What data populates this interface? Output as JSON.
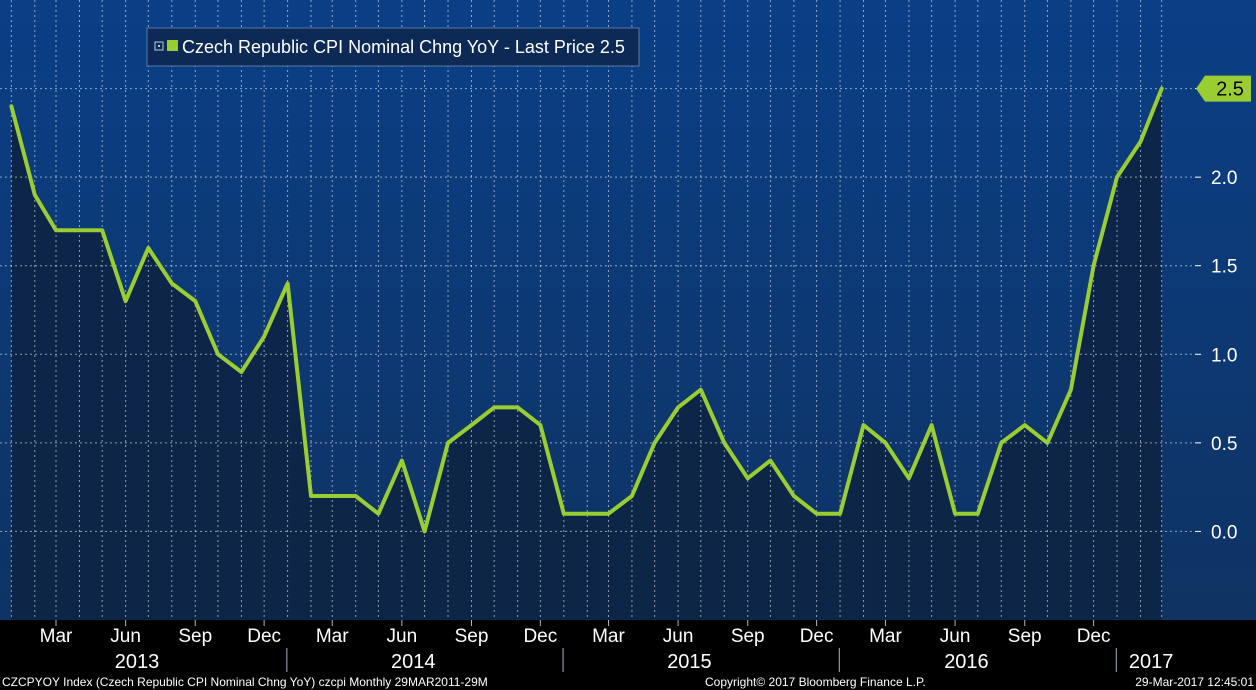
{
  "chart_data": {
    "type": "line",
    "legend": {
      "label": "Czech Republic CPI Nominal Chng YoY - Last Price 2.5",
      "placement": "top-left"
    },
    "last_price_label": "2.5",
    "series": [
      {
        "name": "Czech Republic CPI Nominal Chng YoY",
        "color": "#9acd32",
        "points": [
          [
            "2013-01",
            2.4
          ],
          [
            "2013-02",
            1.9
          ],
          [
            "2013-03",
            1.7
          ],
          [
            "2013-04",
            1.7
          ],
          [
            "2013-05",
            1.7
          ],
          [
            "2013-06",
            1.3
          ],
          [
            "2013-07",
            1.6
          ],
          [
            "2013-08",
            1.4
          ],
          [
            "2013-09",
            1.3
          ],
          [
            "2013-10",
            1.0
          ],
          [
            "2013-11",
            0.9
          ],
          [
            "2013-12",
            1.1
          ],
          [
            "2014-01",
            1.4
          ],
          [
            "2014-02",
            0.2
          ],
          [
            "2014-03",
            0.2
          ],
          [
            "2014-04",
            0.2
          ],
          [
            "2014-05",
            0.1
          ],
          [
            "2014-06",
            0.4
          ],
          [
            "2014-07",
            0.0
          ],
          [
            "2014-08",
            0.5
          ],
          [
            "2014-09",
            0.6
          ],
          [
            "2014-10",
            0.7
          ],
          [
            "2014-11",
            0.7
          ],
          [
            "2014-12",
            0.6
          ],
          [
            "2015-01",
            0.1
          ],
          [
            "2015-02",
            0.1
          ],
          [
            "2015-03",
            0.1
          ],
          [
            "2015-04",
            0.2
          ],
          [
            "2015-05",
            0.5
          ],
          [
            "2015-06",
            0.7
          ],
          [
            "2015-07",
            0.8
          ],
          [
            "2015-08",
            0.5
          ],
          [
            "2015-09",
            0.3
          ],
          [
            "2015-10",
            0.4
          ],
          [
            "2015-11",
            0.2
          ],
          [
            "2015-12",
            0.1
          ],
          [
            "2016-01",
            0.1
          ],
          [
            "2016-02",
            0.6
          ],
          [
            "2016-03",
            0.5
          ],
          [
            "2016-04",
            0.3
          ],
          [
            "2016-05",
            0.6
          ],
          [
            "2016-06",
            0.1
          ],
          [
            "2016-07",
            0.1
          ],
          [
            "2016-08",
            0.5
          ],
          [
            "2016-09",
            0.6
          ],
          [
            "2016-10",
            0.5
          ],
          [
            "2016-11",
            0.8
          ],
          [
            "2016-12",
            1.5
          ],
          [
            "2017-01",
            2.0
          ],
          [
            "2017-02",
            2.2
          ],
          [
            "2017-03",
            2.5
          ]
        ]
      }
    ],
    "ylim": [
      -0.5,
      3.0
    ],
    "yticks": [
      {
        "value": 0.0,
        "label": "0.0"
      },
      {
        "value": 0.5,
        "label": "0.5"
      },
      {
        "value": 1.0,
        "label": "1.0"
      },
      {
        "value": 1.5,
        "label": "1.5"
      },
      {
        "value": 2.0,
        "label": "2.0"
      },
      {
        "value": 2.5,
        "label": ""
      }
    ],
    "xlim": [
      "2012-12-17",
      "2017-04-14"
    ],
    "gridline_dates": [
      "2013-01",
      "2013-02",
      "2013-03",
      "2013-04",
      "2013-05",
      "2013-06",
      "2013-07",
      "2013-08",
      "2013-09",
      "2013-10",
      "2013-11",
      "2013-12",
      "2014-01",
      "2014-02",
      "2014-03",
      "2014-04",
      "2014-05",
      "2014-06",
      "2014-07",
      "2014-08",
      "2014-09",
      "2014-10",
      "2014-11",
      "2014-12",
      "2015-01",
      "2015-02",
      "2015-03",
      "2015-04",
      "2015-05",
      "2015-06",
      "2015-07",
      "2015-08",
      "2015-09",
      "2015-10",
      "2015-11",
      "2015-12",
      "2016-01",
      "2016-02",
      "2016-03",
      "2016-04",
      "2016-05",
      "2016-06",
      "2016-07",
      "2016-08",
      "2016-09",
      "2016-10",
      "2016-11",
      "2016-12",
      "2017-01",
      "2017-02",
      "2017-03"
    ],
    "month_labels": [
      {
        "date": "2013-03",
        "label": "Mar"
      },
      {
        "date": "2013-06",
        "label": "Jun"
      },
      {
        "date": "2013-09",
        "label": "Sep"
      },
      {
        "date": "2013-12",
        "label": "Dec"
      },
      {
        "date": "2014-03",
        "label": "Mar"
      },
      {
        "date": "2014-06",
        "label": "Jun"
      },
      {
        "date": "2014-09",
        "label": "Sep"
      },
      {
        "date": "2014-12",
        "label": "Dec"
      },
      {
        "date": "2015-03",
        "label": "Mar"
      },
      {
        "date": "2015-06",
        "label": "Jun"
      },
      {
        "date": "2015-09",
        "label": "Sep"
      },
      {
        "date": "2015-12",
        "label": "Dec"
      },
      {
        "date": "2016-03",
        "label": "Mar"
      },
      {
        "date": "2016-06",
        "label": "Jun"
      },
      {
        "date": "2016-09",
        "label": "Sep"
      },
      {
        "date": "2016-12",
        "label": "Dec"
      }
    ],
    "year_labels": [
      {
        "date": "2013-06-16",
        "label": "2013"
      },
      {
        "date": "2014-06-16",
        "label": "2014"
      },
      {
        "date": "2015-06-16",
        "label": "2015"
      },
      {
        "date": "2016-06-16",
        "label": "2016"
      },
      {
        "date": "2017-02-15",
        "label": "2017"
      }
    ],
    "year_separators": [
      "2013-12-31",
      "2014-12-31",
      "2015-12-31",
      "2016-12-31"
    ],
    "grid": true
  },
  "footer": {
    "left": "CZCPYOY Index (Czech Republic CPI Nominal Chng YoY) czcpi  Monthly 29MAR2011-29M",
    "center": "Copyright© 2017 Bloomberg Finance L.P.",
    "right": "29-Mar-2017 12:45:01"
  },
  "colors": {
    "line": "#9acd32",
    "background_top": "#0a3f86",
    "background_bottom": "#0d2b55",
    "area_fill": "#0d2444",
    "grid": "#ffffff",
    "axis_bar": "#000000",
    "text": "#ffffff",
    "last_price_badge": "#9acd32"
  }
}
